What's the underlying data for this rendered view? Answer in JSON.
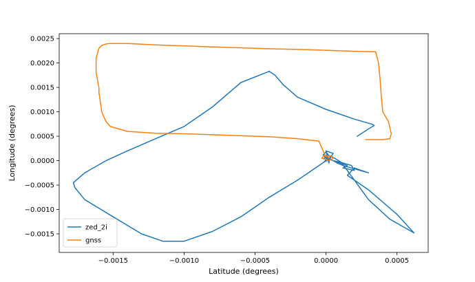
{
  "chart_data": {
    "type": "line",
    "title": "",
    "xlabel": "Latitude (degrees)",
    "ylabel": "Longitude (degrees)",
    "xlim": [
      -0.00188,
      0.00072
    ],
    "ylim": [
      -0.00188,
      0.0026
    ],
    "xticks": [
      -0.0015,
      -0.001,
      -0.0005,
      0.0,
      0.0005
    ],
    "xtick_labels": [
      "−0.0015",
      "−0.0010",
      "−0.0005",
      "0.0000",
      "0.0005"
    ],
    "yticks": [
      -0.0015,
      -0.001,
      -0.0005,
      0.0,
      0.0005,
      0.001,
      0.0015,
      0.002,
      0.0025
    ],
    "ytick_labels": [
      "−0.0015",
      "−0.0010",
      "−0.0005",
      "0.0000",
      "0.0005",
      "0.0010",
      "0.0015",
      "0.0020",
      "0.0025"
    ],
    "grid": false,
    "legend_position": "lower-left",
    "series": [
      {
        "name": "zed_2i",
        "color": "#1f77b4",
        "x": [
          0.00022,
          0.0003,
          0.00034,
          0.00032,
          0.0002,
          0.0,
          -0.0002,
          -0.0003,
          -0.00036,
          -0.0004,
          -0.0006,
          -0.0008,
          -0.001,
          -0.0012,
          -0.0014,
          -0.00155,
          -0.0017,
          -0.00178,
          -0.00177,
          -0.0017,
          -0.0015,
          -0.0013,
          -0.00115,
          -0.001,
          -0.0008,
          -0.0006,
          -0.0004,
          -0.0002,
          -5e-05,
          0.0,
          3e-05,
          5e-05,
          0.0,
          2e-05,
          3e-05,
          6e-05,
          0.0001,
          0.00015,
          0.0002,
          0.0003,
          0.00045,
          0.00062,
          0.0005,
          0.0003,
          0.00015,
          0.0002,
          0.00025,
          0.0003,
          0.00012,
          8e-05,
          5e-05,
          0.00015,
          0.00012,
          0.0002,
          0.00018,
          0.0001,
          5e-05,
          0.0,
          -2e-05,
          0.0,
          2e-05,
          -2e-05,
          1e-05,
          -1e-05,
          3e-05
        ],
        "y": [
          0.0005,
          0.00065,
          0.00072,
          0.00075,
          0.00085,
          0.00105,
          0.0013,
          0.00155,
          0.00175,
          0.00183,
          0.0016,
          0.0011,
          0.0007,
          0.00045,
          0.0002,
          0.0,
          -0.00025,
          -0.00045,
          -0.00055,
          -0.0008,
          -0.00115,
          -0.0015,
          -0.00165,
          -0.00165,
          -0.00145,
          -0.00115,
          -0.00075,
          -0.0004,
          -0.0001,
          0.0,
          5e-05,
          0.00015,
          0.0002,
          -5e-05,
          0.0001,
          5e-05,
          -2e-05,
          -0.0002,
          -0.0004,
          -0.0008,
          -0.0012,
          -0.00148,
          -0.0011,
          -0.0006,
          -0.0003,
          -0.00015,
          -0.0002,
          -0.00025,
          -0.0001,
          -5e-05,
          0.0,
          -0.0001,
          -0.00015,
          -0.0002,
          -0.0001,
          -3e-05,
          0.0,
          5e-05,
          0.00012,
          0.00018,
          0.0001,
          4e-05,
          8e-05,
          -2e-05,
          3e-05
        ]
      },
      {
        "name": "gnss",
        "color": "#ff7f0e",
        "x": [
          0.00028,
          0.0004,
          0.00045,
          0.00046,
          0.00044,
          0.0004,
          0.00039,
          0.00038,
          0.00037,
          0.00035,
          0.0002,
          -0.0001,
          -0.0005,
          -0.0009,
          -0.0012,
          -0.0014,
          -0.00152,
          -0.00155,
          -0.00158,
          -0.0016,
          -0.00162,
          -0.00162,
          -0.0016,
          -0.0016,
          -0.00159,
          -0.00158,
          -0.00155,
          -0.00152,
          -0.0014,
          -0.0012,
          -0.001,
          -0.0008,
          -0.0006,
          -0.0004,
          -0.0002,
          -5e-05,
          -2e-05,
          0.0,
          3e-05,
          5e-05,
          2e-05,
          -3e-05,
          -1e-05,
          2e-05
        ],
        "y": [
          0.00043,
          0.00043,
          0.00045,
          0.00055,
          0.0008,
          0.001,
          0.0013,
          0.0017,
          0.002,
          0.00223,
          0.00224,
          0.00227,
          0.0023,
          0.00234,
          0.00237,
          0.0024,
          0.0024,
          0.00239,
          0.00236,
          0.0023,
          0.0021,
          0.0018,
          0.0015,
          0.0014,
          0.0012,
          0.001,
          0.0008,
          0.0007,
          0.0006,
          0.00056,
          0.00055,
          0.00053,
          0.00051,
          0.00049,
          0.00045,
          0.0004,
          0.0002,
          8e-05,
          0.0001,
          5e-05,
          0.0,
          5e-05,
          0.00012,
          6e-05
        ]
      }
    ]
  }
}
